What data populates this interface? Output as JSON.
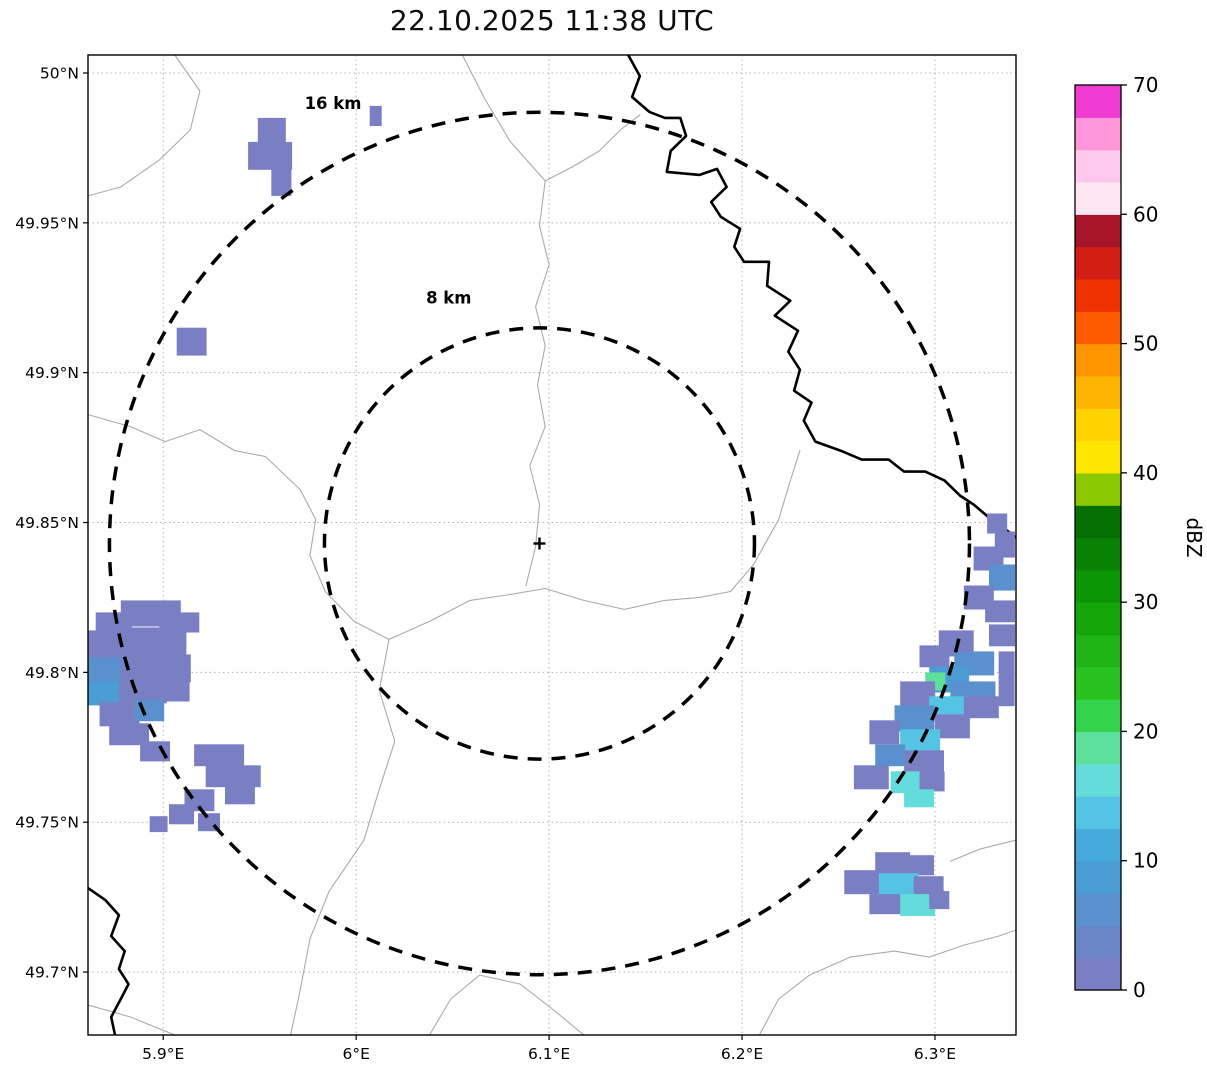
{
  "chart_data": {
    "type": "heatmap",
    "title": "22.10.2025 11:38 UTC",
    "xlabel": "",
    "ylabel": "",
    "xlim": [
      5.861,
      6.342
    ],
    "ylim": [
      49.679,
      50.006
    ],
    "grid": true,
    "x_ticks": [
      {
        "v": 5.9,
        "label": "5.9°E"
      },
      {
        "v": 6.0,
        "label": "6°E"
      },
      {
        "v": 6.1,
        "label": "6.1°E"
      },
      {
        "v": 6.2,
        "label": "6.2°E"
      },
      {
        "v": 6.3,
        "label": "6.3°E"
      }
    ],
    "y_ticks": [
      {
        "v": 50.0,
        "label": "50°N"
      },
      {
        "v": 49.95,
        "label": "49.95°N"
      },
      {
        "v": 49.9,
        "label": "49.9°N"
      },
      {
        "v": 49.85,
        "label": "49.85°N"
      },
      {
        "v": 49.8,
        "label": "49.8°N"
      },
      {
        "v": 49.75,
        "label": "49.75°N"
      },
      {
        "v": 49.7,
        "label": "49.7°N"
      }
    ],
    "radar_center": {
      "lon": 6.095,
      "lat": 49.843
    },
    "range_rings": [
      {
        "radius_km": 8,
        "label": "8 km",
        "label_lon": 6.048,
        "label_lat": 49.923
      },
      {
        "radius_km": 16,
        "label": "16 km",
        "label_lon": 5.988,
        "label_lat": 49.988
      }
    ],
    "colorbar": {
      "label": "dBZ",
      "min": 0,
      "max": 70,
      "step": 2.5,
      "ticks": [
        0,
        10,
        20,
        30,
        40,
        50,
        60,
        70
      ],
      "colors": [
        "#7a7fc3",
        "#6a84c8",
        "#5a90ce",
        "#4a9cd4",
        "#46aadc",
        "#55c3e4",
        "#64dcdc",
        "#5ce09b",
        "#32d24b",
        "#28c31e",
        "#1eb414",
        "#14a50a",
        "#0c9606",
        "#088204",
        "#046e02",
        "#8cc800",
        "#ffe600",
        "#ffd200",
        "#ffb400",
        "#ff9600",
        "#ff5a00",
        "#f03200",
        "#d21e14",
        "#a51428",
        "#ffe6f5",
        "#ffc8ec",
        "#ff96dc",
        "#f03cd2"
      ]
    },
    "cells": [
      [
        5.949,
        49.985,
        0.0145,
        0.0087,
        0
      ],
      [
        5.944,
        49.977,
        0.0228,
        0.0093,
        0
      ],
      [
        5.956,
        49.969,
        0.0104,
        0.01,
        0
      ],
      [
        6.007,
        49.989,
        0.0062,
        0.0067,
        0
      ],
      [
        5.907,
        49.915,
        0.0155,
        0.0093,
        0
      ],
      [
        5.865,
        49.82,
        0.0187,
        0.0073,
        0
      ],
      [
        5.878,
        49.824,
        0.0311,
        0.0087,
        0
      ],
      [
        5.898,
        49.82,
        0.0207,
        0.0067,
        0
      ],
      [
        5.861,
        49.814,
        0.0259,
        0.01,
        0
      ],
      [
        5.883,
        49.815,
        0.029,
        0.01,
        0
      ],
      [
        5.861,
        49.805,
        0.0207,
        0.0087,
        2
      ],
      [
        5.878,
        49.806,
        0.0363,
        0.0093,
        0
      ],
      [
        5.861,
        49.797,
        0.0187,
        0.008,
        3
      ],
      [
        5.877,
        49.797,
        0.0249,
        0.0073,
        0
      ],
      [
        5.893,
        49.799,
        0.0207,
        0.0087,
        0
      ],
      [
        5.867,
        49.79,
        0.0207,
        0.008,
        0
      ],
      [
        5.885,
        49.791,
        0.0155,
        0.0073,
        2
      ],
      [
        5.872,
        49.783,
        0.0207,
        0.0073,
        0
      ],
      [
        5.888,
        49.777,
        0.0155,
        0.0067,
        0
      ],
      [
        5.916,
        49.776,
        0.0259,
        0.0073,
        0
      ],
      [
        5.922,
        49.769,
        0.0285,
        0.0073,
        0
      ],
      [
        5.932,
        49.762,
        0.0155,
        0.006,
        0
      ],
      [
        5.911,
        49.761,
        0.0155,
        0.0073,
        0
      ],
      [
        5.903,
        49.756,
        0.013,
        0.0067,
        0
      ],
      [
        5.893,
        49.752,
        0.0093,
        0.0053,
        0
      ],
      [
        5.918,
        49.753,
        0.0114,
        0.006,
        0
      ],
      [
        6.327,
        49.853,
        0.0104,
        0.0067,
        0
      ],
      [
        6.331,
        49.847,
        0.0104,
        0.0087,
        0
      ],
      [
        6.32,
        49.842,
        0.0155,
        0.008,
        0
      ],
      [
        6.328,
        49.836,
        0.0135,
        0.0087,
        2
      ],
      [
        6.315,
        49.829,
        0.0155,
        0.008,
        0
      ],
      [
        6.326,
        49.824,
        0.0155,
        0.0073,
        0
      ],
      [
        6.328,
        49.816,
        0.0135,
        0.0073,
        0
      ],
      [
        6.302,
        49.814,
        0.0181,
        0.0087,
        0
      ],
      [
        6.31,
        49.807,
        0.0207,
        0.008,
        2
      ],
      [
        6.292,
        49.809,
        0.0155,
        0.0073,
        0
      ],
      [
        6.297,
        49.802,
        0.0207,
        0.0087,
        3
      ],
      [
        6.295,
        49.8,
        0.0104,
        0.006,
        7
      ],
      [
        6.308,
        49.797,
        0.0233,
        0.0087,
        2
      ],
      [
        6.282,
        49.797,
        0.0181,
        0.0087,
        0
      ],
      [
        6.297,
        49.792,
        0.0207,
        0.008,
        5
      ],
      [
        6.315,
        49.792,
        0.0181,
        0.0073,
        0
      ],
      [
        6.279,
        49.789,
        0.0207,
        0.0087,
        2
      ],
      [
        6.3,
        49.786,
        0.0181,
        0.008,
        0
      ],
      [
        6.282,
        49.781,
        0.0207,
        0.008,
        5
      ],
      [
        6.266,
        49.784,
        0.0155,
        0.008,
        0
      ],
      [
        6.284,
        49.774,
        0.0207,
        0.008,
        0
      ],
      [
        6.269,
        49.776,
        0.0155,
        0.0073,
        2
      ],
      [
        6.277,
        49.767,
        0.0181,
        0.0073,
        6
      ],
      [
        6.258,
        49.769,
        0.0181,
        0.008,
        0
      ],
      [
        6.292,
        49.767,
        0.013,
        0.0067,
        0
      ],
      [
        6.284,
        49.761,
        0.0155,
        0.006,
        6
      ],
      [
        6.333,
        49.807,
        0.0083,
        0.0183,
        0
      ],
      [
        6.269,
        49.74,
        0.0181,
        0.0073,
        0
      ],
      [
        6.284,
        49.739,
        0.0155,
        0.0067,
        0
      ],
      [
        6.253,
        49.734,
        0.0207,
        0.008,
        0
      ],
      [
        6.271,
        49.733,
        0.0207,
        0.008,
        5
      ],
      [
        6.289,
        49.732,
        0.0155,
        0.0073,
        0
      ],
      [
        6.266,
        49.726,
        0.0181,
        0.0067,
        0
      ],
      [
        6.282,
        49.726,
        0.0181,
        0.0073,
        6
      ],
      [
        6.297,
        49.727,
        0.0104,
        0.006,
        0
      ]
    ],
    "map_lines": {
      "thick": [
        [
          [
            6.141,
            50.006
          ],
          [
            6.147,
            49.999
          ],
          [
            6.143,
            49.992
          ],
          [
            6.152,
            49.987
          ],
          [
            6.16,
            49.985
          ],
          [
            6.168,
            49.985
          ],
          [
            6.171,
            49.979
          ],
          [
            6.163,
            49.974
          ],
          [
            6.161,
            49.967
          ],
          [
            6.178,
            49.966
          ],
          [
            6.187,
            49.968
          ],
          [
            6.192,
            49.962
          ],
          [
            6.184,
            49.957
          ],
          [
            6.189,
            49.952
          ],
          [
            6.199,
            49.948
          ],
          [
            6.196,
            49.942
          ],
          [
            6.201,
            49.937
          ],
          [
            6.214,
            49.937
          ],
          [
            6.213,
            49.929
          ],
          [
            6.225,
            49.924
          ],
          [
            6.217,
            49.919
          ],
          [
            6.229,
            49.914
          ],
          [
            6.224,
            49.907
          ],
          [
            6.23,
            49.901
          ],
          [
            6.227,
            49.894
          ],
          [
            6.236,
            49.89
          ],
          [
            6.232,
            49.884
          ],
          [
            6.238,
            49.877
          ],
          [
            6.251,
            49.874
          ],
          [
            6.262,
            49.871
          ],
          [
            6.276,
            49.871
          ],
          [
            6.284,
            49.867
          ],
          [
            6.295,
            49.867
          ],
          [
            6.305,
            49.864
          ],
          [
            6.313,
            49.859
          ],
          [
            6.32,
            49.856
          ],
          [
            6.331,
            49.85
          ],
          [
            6.338,
            49.847
          ],
          [
            6.342,
            49.845
          ]
        ],
        [
          [
            5.861,
            49.728
          ],
          [
            5.87,
            49.724
          ],
          [
            5.877,
            49.719
          ],
          [
            5.873,
            49.712
          ],
          [
            5.88,
            49.707
          ],
          [
            5.877,
            49.701
          ],
          [
            5.882,
            49.696
          ],
          [
            5.878,
            49.691
          ],
          [
            5.873,
            49.685
          ],
          [
            5.875,
            49.679
          ]
        ]
      ],
      "thin": [
        [
          [
            5.906,
            50.006
          ],
          [
            5.919,
            49.994
          ],
          [
            5.914,
            49.981
          ],
          [
            5.898,
            49.971
          ],
          [
            5.878,
            49.962
          ],
          [
            5.861,
            49.959
          ]
        ],
        [
          [
            6.055,
            50.006
          ],
          [
            6.067,
            49.991
          ],
          [
            6.08,
            49.977
          ],
          [
            6.098,
            49.964
          ],
          [
            6.095,
            49.949
          ],
          [
            6.1,
            49.936
          ],
          [
            6.093,
            49.922
          ],
          [
            6.098,
            49.909
          ],
          [
            6.094,
            49.896
          ],
          [
            6.098,
            49.882
          ],
          [
            6.09,
            49.869
          ],
          [
            6.095,
            49.856
          ],
          [
            6.093,
            49.842
          ],
          [
            6.088,
            49.829
          ]
        ],
        [
          [
            6.098,
            49.964
          ],
          [
            6.113,
            49.969
          ],
          [
            6.126,
            49.974
          ],
          [
            6.137,
            49.981
          ],
          [
            6.147,
            49.986
          ]
        ],
        [
          [
            5.861,
            49.886
          ],
          [
            5.883,
            49.882
          ],
          [
            5.901,
            49.877
          ],
          [
            5.919,
            49.881
          ],
          [
            5.937,
            49.874
          ],
          [
            5.953,
            49.872
          ],
          [
            5.971,
            49.861
          ],
          [
            5.979,
            49.851
          ],
          [
            5.976,
            49.839
          ],
          [
            5.984,
            49.827
          ],
          [
            5.999,
            49.817
          ],
          [
            6.017,
            49.811
          ]
        ],
        [
          [
            6.017,
            49.811
          ],
          [
            6.038,
            49.817
          ],
          [
            6.059,
            49.824
          ],
          [
            6.08,
            49.826
          ],
          [
            6.098,
            49.828
          ],
          [
            6.118,
            49.824
          ],
          [
            6.139,
            49.821
          ],
          [
            6.16,
            49.824
          ],
          [
            6.178,
            49.825
          ],
          [
            6.194,
            49.827
          ],
          [
            6.206,
            49.836
          ],
          [
            6.219,
            49.851
          ],
          [
            6.225,
            49.864
          ],
          [
            6.23,
            49.874
          ]
        ],
        [
          [
            6.017,
            49.811
          ],
          [
            6.012,
            49.794
          ],
          [
            6.02,
            49.777
          ],
          [
            6.012,
            49.761
          ],
          [
            6.004,
            49.744
          ],
          [
            5.986,
            49.727
          ],
          [
            5.976,
            49.711
          ],
          [
            5.971,
            49.694
          ],
          [
            5.966,
            49.679
          ]
        ],
        [
          [
            6.038,
            49.679
          ],
          [
            6.049,
            49.691
          ],
          [
            6.064,
            49.699
          ],
          [
            6.085,
            49.696
          ],
          [
            6.103,
            49.687
          ],
          [
            6.118,
            49.679
          ]
        ],
        [
          [
            6.209,
            49.679
          ],
          [
            6.219,
            49.691
          ],
          [
            6.235,
            49.699
          ],
          [
            6.256,
            49.705
          ],
          [
            6.279,
            49.707
          ],
          [
            6.297,
            49.705
          ],
          [
            6.315,
            49.709
          ],
          [
            6.333,
            49.712
          ],
          [
            6.342,
            49.714
          ]
        ],
        [
          [
            6.308,
            49.737
          ],
          [
            6.323,
            49.741
          ],
          [
            6.342,
            49.744
          ]
        ],
        [
          [
            5.861,
            49.689
          ],
          [
            5.883,
            49.685
          ],
          [
            5.906,
            49.679
          ]
        ]
      ]
    }
  }
}
